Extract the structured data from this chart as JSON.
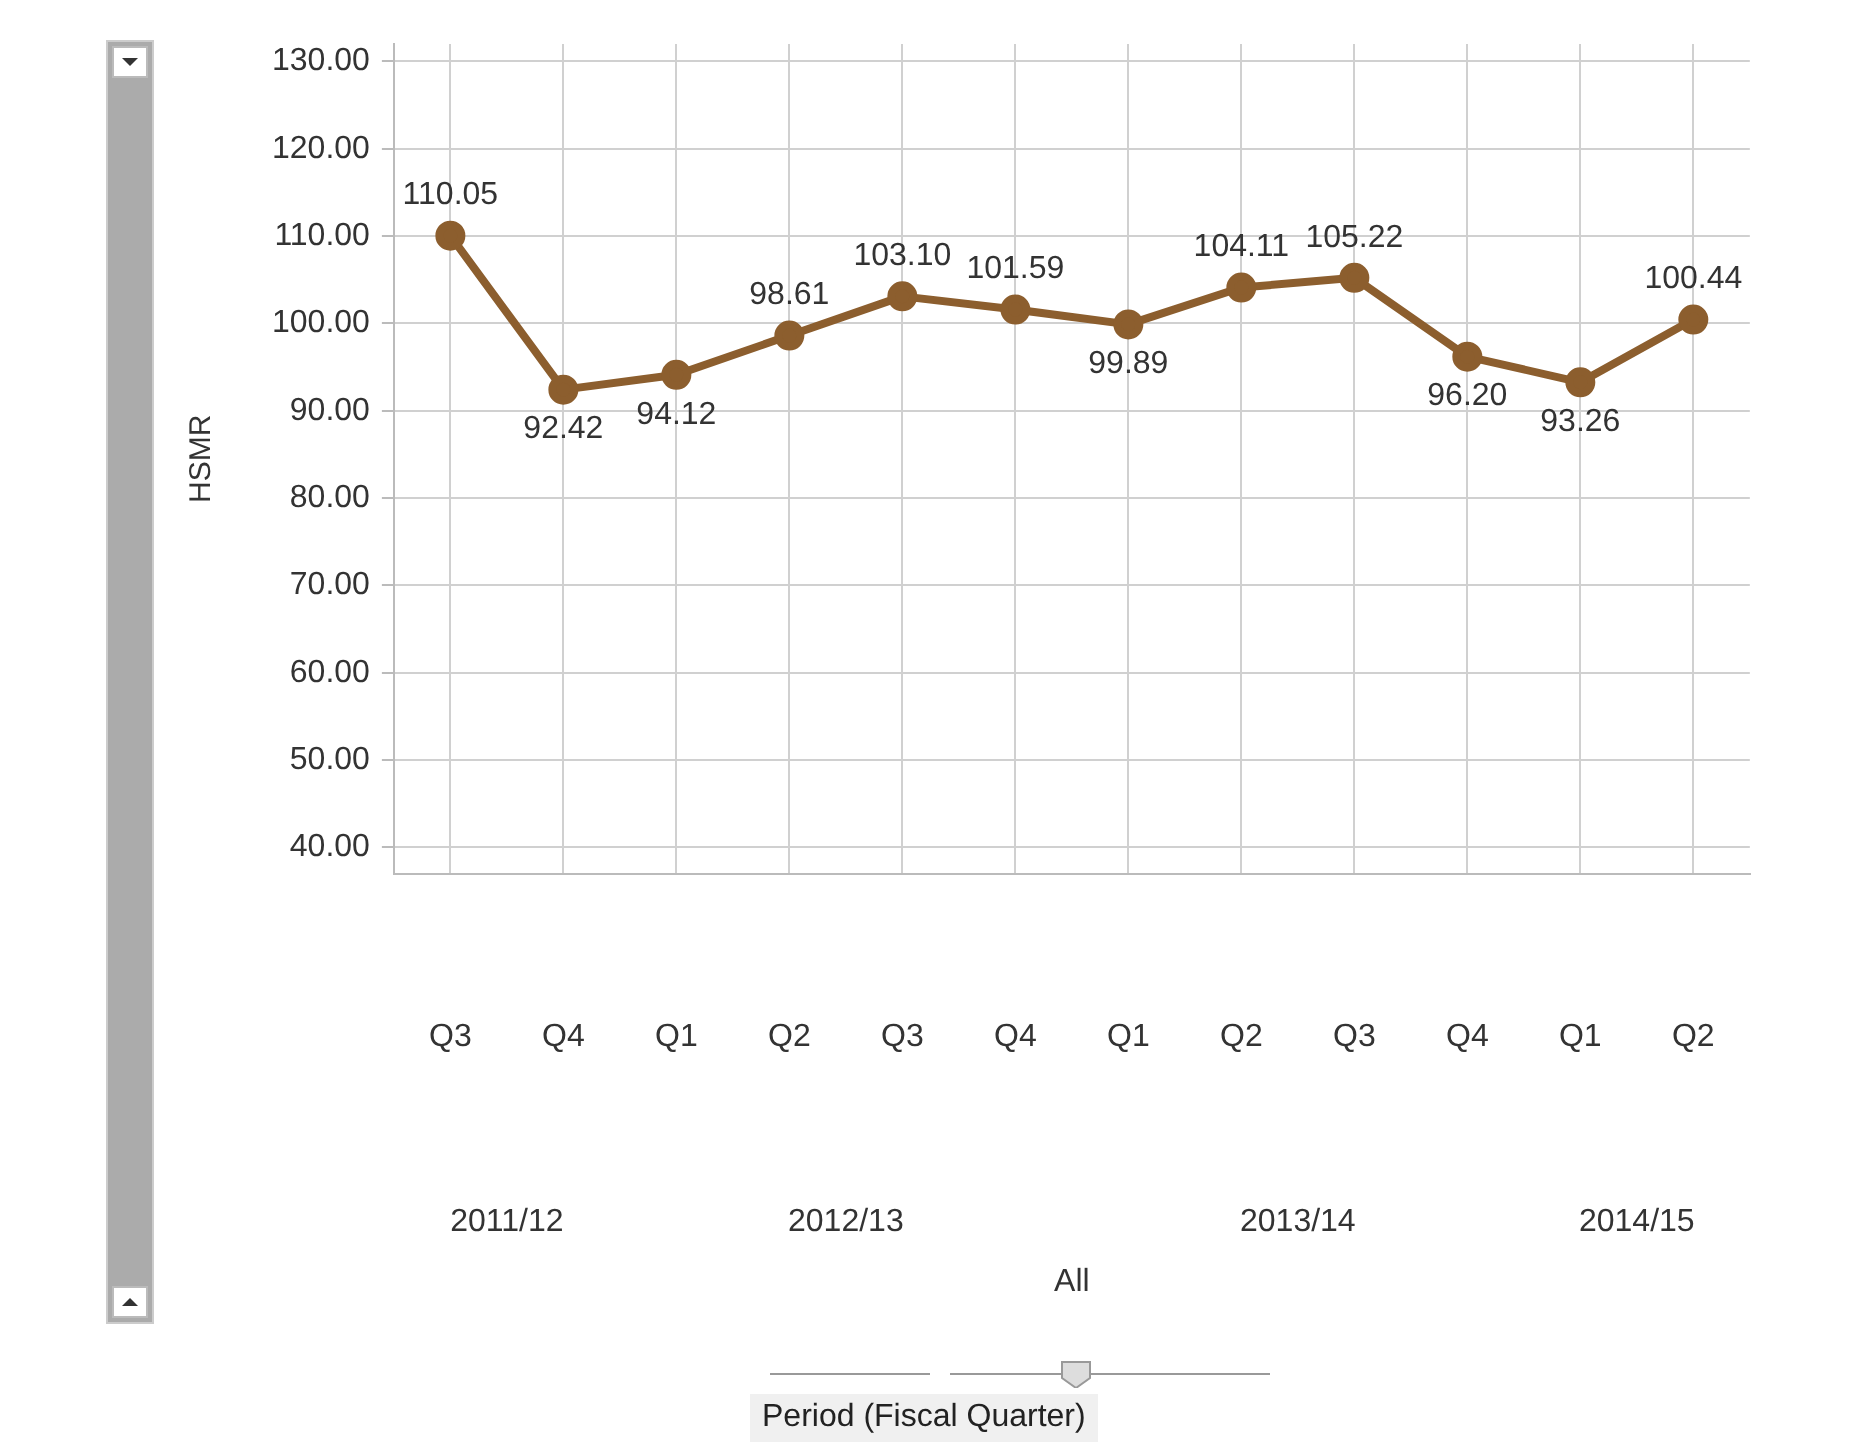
{
  "chart_data": {
    "type": "line",
    "ylabel": "HSMR",
    "categories": [
      "Q3",
      "Q4",
      "Q1",
      "Q2",
      "Q3",
      "Q4",
      "Q1",
      "Q2",
      "Q3",
      "Q4",
      "Q1",
      "Q2"
    ],
    "series": [
      {
        "color": "#8c5e2e",
        "values": [
          110.05,
          92.42,
          94.12,
          98.61,
          103.1,
          101.59,
          99.89,
          104.11,
          105.22,
          96.2,
          93.26,
          100.44
        ],
        "value_labels": [
          "110.05",
          "92.42",
          "94.12",
          "98.61",
          "103.10",
          "101.59",
          "99.89",
          "104.11",
          "105.22",
          "96.20",
          "93.26",
          "100.44"
        ]
      }
    ],
    "ylim": [
      37,
      132
    ],
    "yticks": [
      {
        "value": 40,
        "label": "40.00"
      },
      {
        "value": 50,
        "label": "50.00"
      },
      {
        "value": 60,
        "label": "60.00"
      },
      {
        "value": 70,
        "label": "70.00"
      },
      {
        "value": 80,
        "label": "80.00"
      },
      {
        "value": 90,
        "label": "90.00"
      },
      {
        "value": 100,
        "label": "100.00"
      },
      {
        "value": 110,
        "label": "110.00"
      },
      {
        "value": 120,
        "label": "120.00"
      },
      {
        "value": 130,
        "label": "130.00"
      }
    ],
    "annotations": [
      "2011/12",
      "2012/13",
      "2013/14",
      "2014/15",
      "All",
      "Period (Fiscal Quarter)"
    ],
    "grid": true,
    "legend": false,
    "marker": "circle",
    "line_style": "solid"
  }
}
